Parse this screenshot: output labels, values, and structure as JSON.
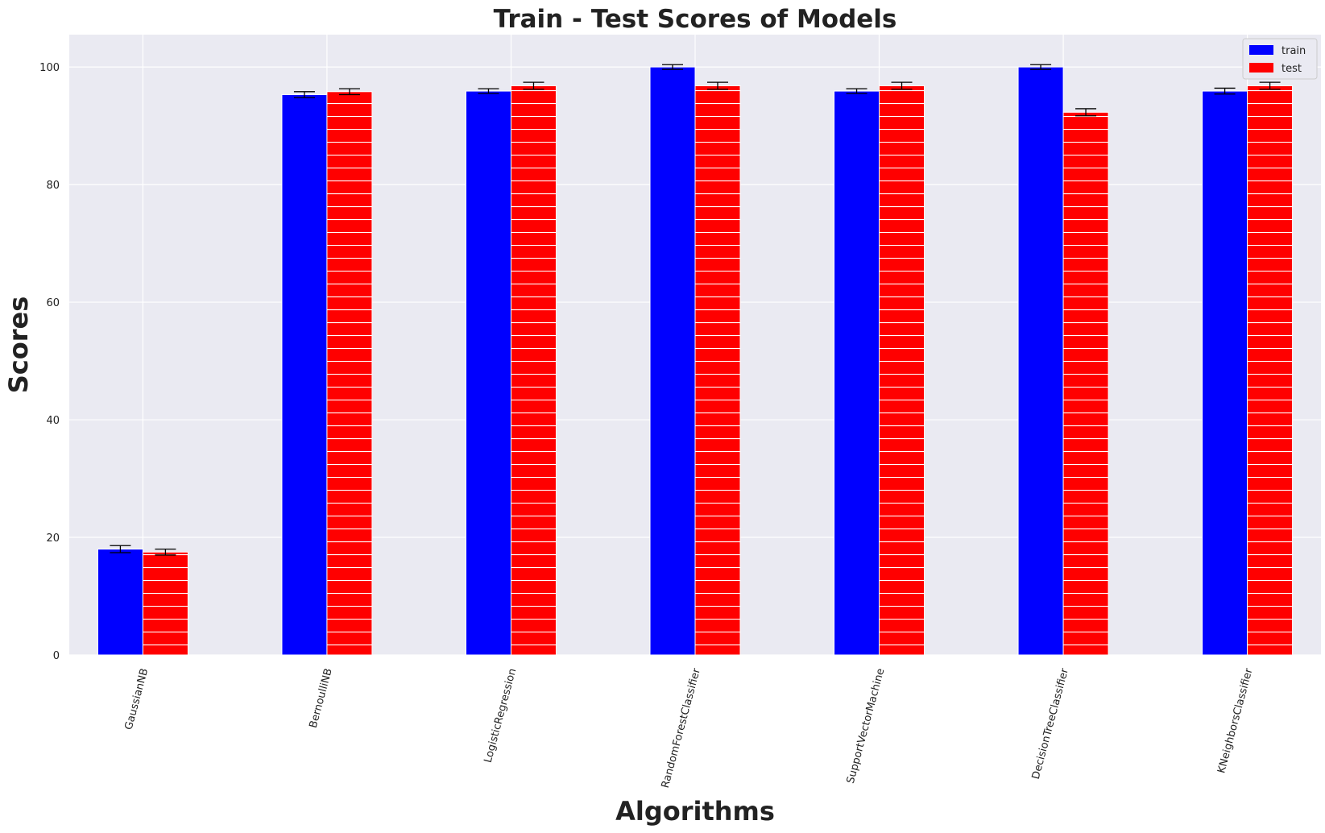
{
  "chart_data": {
    "type": "bar",
    "title": "Train - Test Scores of Models",
    "xlabel": "Algorithms",
    "ylabel": "Scores",
    "categories": [
      "GaussianNB",
      "BernoulliNB",
      "LogisticRegression",
      "RandomForestClassifier",
      "SupportVectorMachine",
      "DecisionTreeClassifier",
      "KNeighborsClassifier"
    ],
    "series": [
      {
        "name": "train",
        "values": [
          18.0,
          95.3,
          95.9,
          100.0,
          95.9,
          100.0,
          95.9
        ],
        "errors": [
          0.6,
          0.5,
          0.4,
          0.4,
          0.4,
          0.4,
          0.5
        ],
        "color": "#0000ff",
        "hatch": "none"
      },
      {
        "name": "test",
        "values": [
          17.5,
          95.8,
          96.8,
          96.8,
          96.8,
          92.3,
          96.8
        ],
        "errors": [
          0.5,
          0.5,
          0.6,
          0.6,
          0.6,
          0.6,
          0.6
        ],
        "color": "#ff0000",
        "hatch": "horizontal-lines"
      }
    ],
    "ylim": [
      0,
      105.5
    ],
    "yticks": [
      0,
      20,
      40,
      60,
      80,
      100
    ],
    "grid": true,
    "legend_position": "top-right",
    "xtick_rotation": 75,
    "background_color": "#eaeaf2",
    "grid_color": "#ffffff"
  }
}
